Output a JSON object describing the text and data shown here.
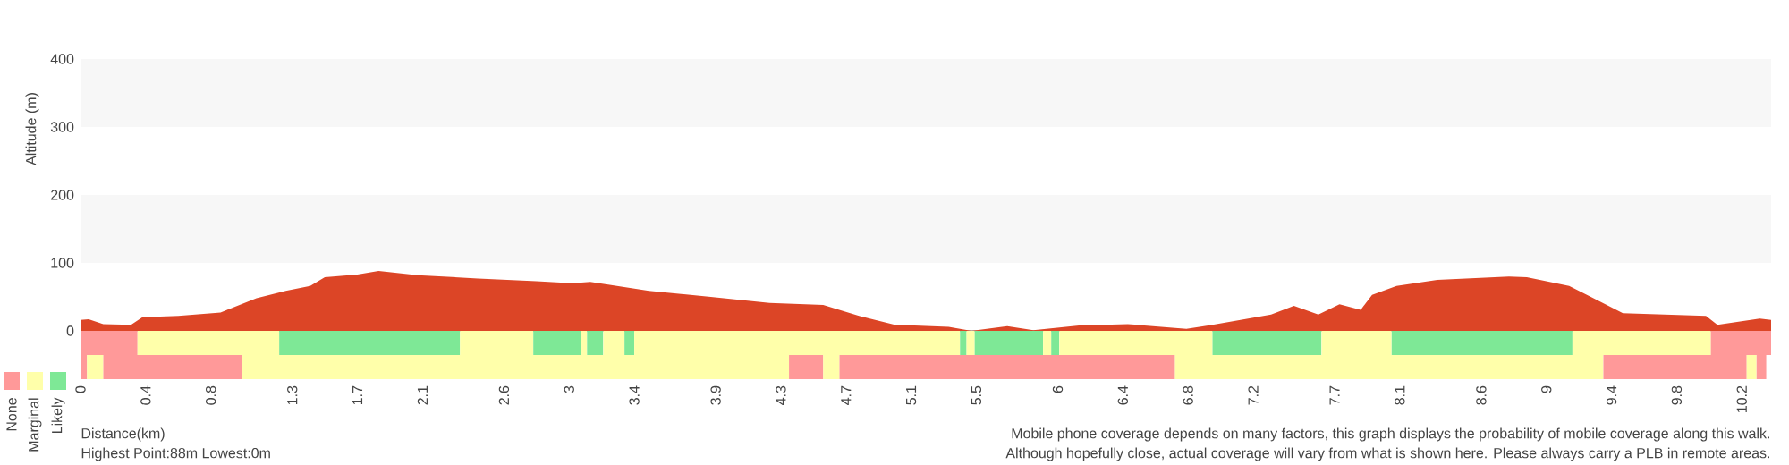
{
  "chart_data": [
    {
      "type": "area",
      "ylabel": "Altitude (m)",
      "color": "#dc4526",
      "tick_labels": "y",
      "x": [
        0,
        0.05,
        0.14,
        0.31,
        0.38,
        0.6,
        0.86,
        0.9,
        1.08,
        1.26,
        1.41,
        1.5,
        1.7,
        1.83,
        2.07,
        2.44,
        2.8,
        3.02,
        3.13,
        3.24,
        3.49,
        3.87,
        4.23,
        4.56,
        4.78,
        5.0,
        5.33,
        5.47,
        5.69,
        5.85,
        6.13,
        6.43,
        6.79,
        6.95,
        7.31,
        7.45,
        7.6,
        7.73,
        7.86,
        7.93,
        8.08,
        8.33,
        8.77,
        8.88,
        9.14,
        9.47,
        9.98,
        10.05,
        10.31,
        10.38
      ],
      "values": [
        16,
        17,
        10,
        9,
        20,
        22,
        27,
        31,
        48,
        59,
        66,
        79,
        83,
        88,
        82,
        77,
        73,
        70,
        72,
        68,
        59,
        50,
        41,
        38,
        22,
        9,
        6,
        0,
        7,
        1,
        8,
        10,
        3,
        9,
        24,
        37,
        24,
        39,
        31,
        53,
        66,
        75,
        80,
        79,
        66,
        26,
        22,
        9,
        18,
        16
      ],
      "xlim": [
        0,
        10.38
      ],
      "ylim": [
        0,
        400
      ],
      "yticks": [
        0,
        100,
        200,
        300,
        400
      ],
      "bands": [
        {
          "axis": "y",
          "from": 100,
          "to": 200,
          "color": "#f7f7f7"
        },
        {
          "axis": "y",
          "from": 300,
          "to": 400,
          "color": "#f7f7f7"
        }
      ],
      "annotations": [
        "Highest Point:88m Lowest:0m",
        "Mobile phone coverage depends on many factors, this graph displays the probability of mobile coverage along this walk.",
        "Although hopefully close, actual coverage will vary from what is shown here. Please always carry a PLB in remote areas."
      ]
    },
    {
      "type": "bar",
      "stacked": true,
      "orientation": "horizontal",
      "xlabel": "Distance(km)",
      "categories": [
        null,
        null
      ],
      "xlim": [
        0,
        10.38
      ],
      "xticks": [
        0,
        0.4,
        0.8,
        1.3,
        1.7,
        2.1,
        2.6,
        3,
        3.4,
        3.9,
        4.3,
        4.7,
        5.1,
        5.5,
        6,
        6.4,
        6.8,
        7.2,
        7.7,
        8.1,
        8.6,
        9,
        9.4,
        9.8,
        10.2
      ],
      "series": [
        {
          "colors": [
            "#ff9999",
            "#ff9999"
          ],
          "values": [
            0.35,
            0.04
          ]
        },
        {
          "colors": [
            "#ffffaa",
            "#ffffaa"
          ],
          "values": [
            0.87,
            0.1
          ]
        },
        {
          "colors": [
            "#7ee896",
            "#ff9999"
          ],
          "values": [
            1.11,
            0.85
          ]
        },
        {
          "colors": [
            "#ffffaa",
            "#ffffaa"
          ],
          "values": [
            0.45,
            3.36
          ]
        },
        {
          "colors": [
            "#7ee896",
            "#ff9999"
          ],
          "values": [
            0.29,
            0.21
          ]
        },
        {
          "colors": [
            "#ffffaa",
            "#ffffaa"
          ],
          "values": [
            0.04,
            0.1
          ]
        },
        {
          "colors": [
            "#7ee896",
            "#ff9999"
          ],
          "values": [
            0.1,
            2.06
          ]
        },
        {
          "colors": [
            "#ffffaa",
            "#ffffaa"
          ],
          "values": [
            0.13,
            2.63
          ]
        },
        {
          "colors": [
            "#7ee896",
            "#ff9999"
          ],
          "values": [
            0.06,
            0.88
          ]
        },
        {
          "colors": [
            "#ffffaa",
            "#ffffaa"
          ],
          "values": [
            2.0,
            0.06
          ]
        },
        {
          "colors": [
            "#7ee896",
            "#ff9999"
          ],
          "values": [
            0.04,
            0.06
          ]
        },
        {
          "colors": [
            "#ffffaa",
            null
          ],
          "values": [
            0.05,
            null
          ]
        },
        {
          "colors": [
            "#7ee896",
            null
          ],
          "values": [
            0.42,
            null
          ]
        },
        {
          "colors": [
            "#ffffaa",
            null
          ],
          "values": [
            0.05,
            null
          ]
        },
        {
          "colors": [
            "#7ee896",
            null
          ],
          "values": [
            0.05,
            null
          ]
        },
        {
          "colors": [
            "#ffffaa",
            null
          ],
          "values": [
            0.94,
            null
          ]
        },
        {
          "colors": [
            "#7ee896",
            null
          ],
          "values": [
            0.67,
            null
          ]
        },
        {
          "colors": [
            "#ffffaa",
            null
          ],
          "values": [
            0.43,
            null
          ]
        },
        {
          "colors": [
            "#7ee896",
            null
          ],
          "values": [
            1.11,
            null
          ]
        },
        {
          "colors": [
            "#ffffaa",
            null
          ],
          "values": [
            0.85,
            null
          ]
        },
        {
          "colors": [
            "#ff9999",
            null
          ],
          "values": [
            0.37,
            null
          ]
        }
      ],
      "annotations": [
        "None",
        "Marginal",
        "Likely"
      ]
    }
  ]
}
